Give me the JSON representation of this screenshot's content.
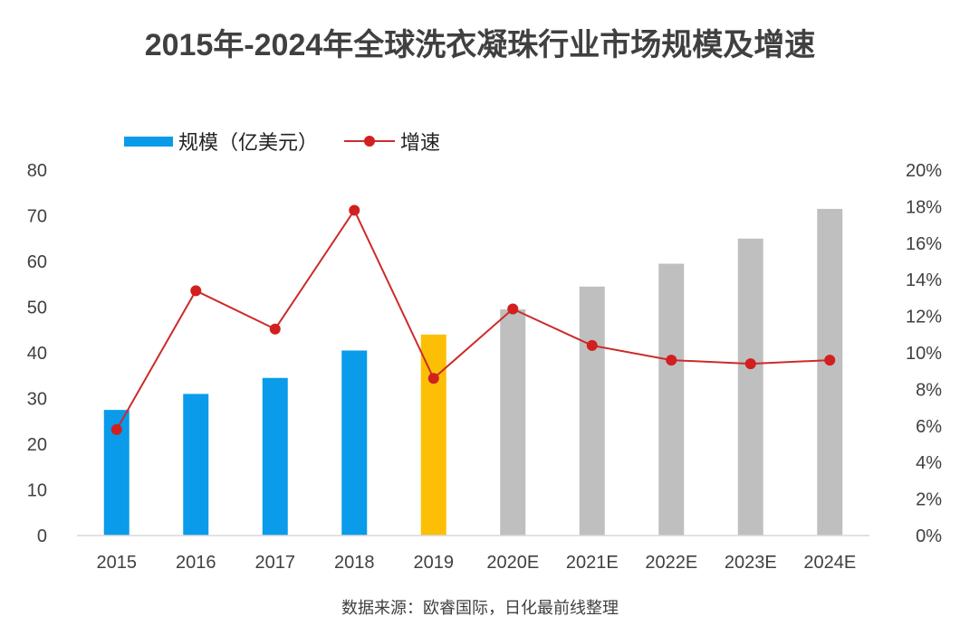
{
  "colors": {
    "actual_bar": "#0a9bea",
    "highlight_bar": "#fdbf05",
    "estimate_bar": "#bfbfbf",
    "line": "#cc2b2b",
    "marker": "#d21f1f",
    "axis_text": "#404040"
  },
  "chart_data": {
    "type": "bar",
    "title": "2015年-2024年全球洗衣凝珠行业市场规模及增速",
    "source": "数据来源：欧睿国际，日化最前线整理",
    "categories": [
      "2015",
      "2016",
      "2017",
      "2018",
      "2019",
      "2020E",
      "2021E",
      "2022E",
      "2023E",
      "2024E"
    ],
    "series": [
      {
        "name": "规模（亿美元）",
        "type": "bar",
        "axis": "left",
        "values": [
          27.5,
          31,
          34.5,
          40.5,
          44,
          49.5,
          54.5,
          59.5,
          65,
          71.5
        ],
        "colors": [
          "actual_bar",
          "actual_bar",
          "actual_bar",
          "actual_bar",
          "highlight_bar",
          "estimate_bar",
          "estimate_bar",
          "estimate_bar",
          "estimate_bar",
          "estimate_bar"
        ]
      },
      {
        "name": "增速",
        "type": "line",
        "axis": "right",
        "values": [
          5.8,
          13.4,
          11.3,
          17.8,
          8.6,
          12.4,
          10.4,
          9.6,
          9.4,
          9.6
        ]
      }
    ],
    "y_left": {
      "min": 0,
      "max": 80,
      "step": 10,
      "ticks": [
        "0",
        "10",
        "20",
        "30",
        "40",
        "50",
        "60",
        "70",
        "80"
      ]
    },
    "y_right": {
      "min": 0,
      "max": 20,
      "step": 2,
      "ticks": [
        "0%",
        "2%",
        "4%",
        "6%",
        "8%",
        "10%",
        "12%",
        "14%",
        "16%",
        "18%",
        "20%"
      ]
    },
    "legend_position": "top-left",
    "grid": false
  }
}
